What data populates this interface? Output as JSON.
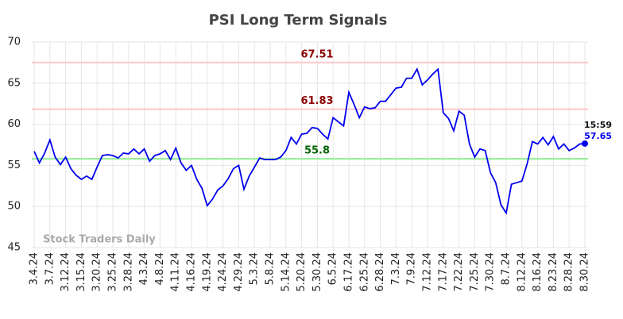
{
  "chart_data": {
    "type": "line",
    "title": "PSI Long Term Signals",
    "categories": [
      "3.4.24",
      null,
      null,
      "3.7.24",
      null,
      null,
      "3.12.24",
      null,
      null,
      "3.15.24",
      null,
      null,
      "3.20.24",
      null,
      null,
      "3.25.24",
      null,
      null,
      "3.28.24",
      null,
      null,
      "4.3.24",
      null,
      null,
      "4.8.24",
      null,
      null,
      "4.11.24",
      null,
      null,
      "4.16.24",
      null,
      null,
      "4.19.24",
      null,
      null,
      "4.24.24",
      null,
      null,
      "4.29.24",
      null,
      null,
      "5.3.24",
      null,
      null,
      "5.8.24",
      null,
      null,
      "5.14.24",
      null,
      null,
      "5.20.24",
      null,
      null,
      "5.30.24",
      null,
      null,
      "6.5.24",
      null,
      null,
      "6.17.24",
      null,
      null,
      "6.25.24",
      null,
      null,
      "6.28.24",
      null,
      null,
      "7.3.24",
      null,
      null,
      "7.9.24",
      null,
      null,
      "7.12.24",
      null,
      null,
      "7.17.24",
      null,
      null,
      "7.22.24",
      null,
      null,
      "7.25.24",
      null,
      null,
      "7.30.24",
      null,
      null,
      "8.7.24",
      null,
      null,
      "8.12.24",
      null,
      null,
      "8.16.24",
      null,
      null,
      "8.23.24",
      null,
      null,
      "8.28.24",
      null,
      null,
      "8.30.24"
    ],
    "values": [
      56.7,
      55.3,
      56.5,
      58.1,
      56.0,
      55.1,
      56.0,
      54.6,
      53.8,
      53.3,
      53.7,
      53.3,
      54.8,
      56.2,
      56.3,
      56.2,
      55.9,
      56.5,
      56.4,
      57.0,
      56.4,
      57.0,
      55.5,
      56.2,
      56.4,
      56.8,
      55.7,
      57.1,
      55.3,
      54.4,
      55.0,
      53.3,
      52.2,
      50.1,
      50.9,
      52.0,
      52.5,
      53.4,
      54.6,
      55.0,
      52.1,
      53.7,
      54.8,
      55.9,
      55.7,
      55.7,
      55.7,
      56.0,
      56.8,
      58.4,
      57.6,
      58.8,
      58.9,
      59.6,
      59.5,
      58.8,
      58.2,
      60.8,
      60.3,
      59.8,
      63.9,
      62.4,
      60.8,
      62.1,
      61.9,
      62.0,
      62.8,
      62.8,
      63.6,
      64.4,
      64.5,
      65.6,
      65.6,
      66.7,
      64.8,
      65.4,
      66.1,
      66.7,
      61.4,
      60.7,
      59.2,
      61.6,
      61.1,
      57.6,
      56.0,
      57.0,
      56.8,
      54.1,
      52.9,
      50.2,
      49.2,
      52.7,
      52.9,
      53.1,
      55.2,
      57.9,
      57.6,
      58.4,
      57.5,
      58.5,
      57.0,
      57.6,
      56.8,
      57.1,
      57.6,
      57.65
    ],
    "color": "#0000ee",
    "ylim": [
      45,
      70
    ],
    "yticks": [
      45,
      50,
      55,
      60,
      65,
      70
    ],
    "grid": true,
    "hlines": [
      {
        "value": 67.51,
        "color": "#ffc8c8",
        "label_color": "#8b0000"
      },
      {
        "value": 61.83,
        "color": "#ffc8c8",
        "label_color": "#8b0000"
      },
      {
        "value": 55.8,
        "color": "#90ee90",
        "label_color": "#006400"
      }
    ],
    "last_time": "15:59",
    "watermark": "Stock Traders Daily"
  }
}
